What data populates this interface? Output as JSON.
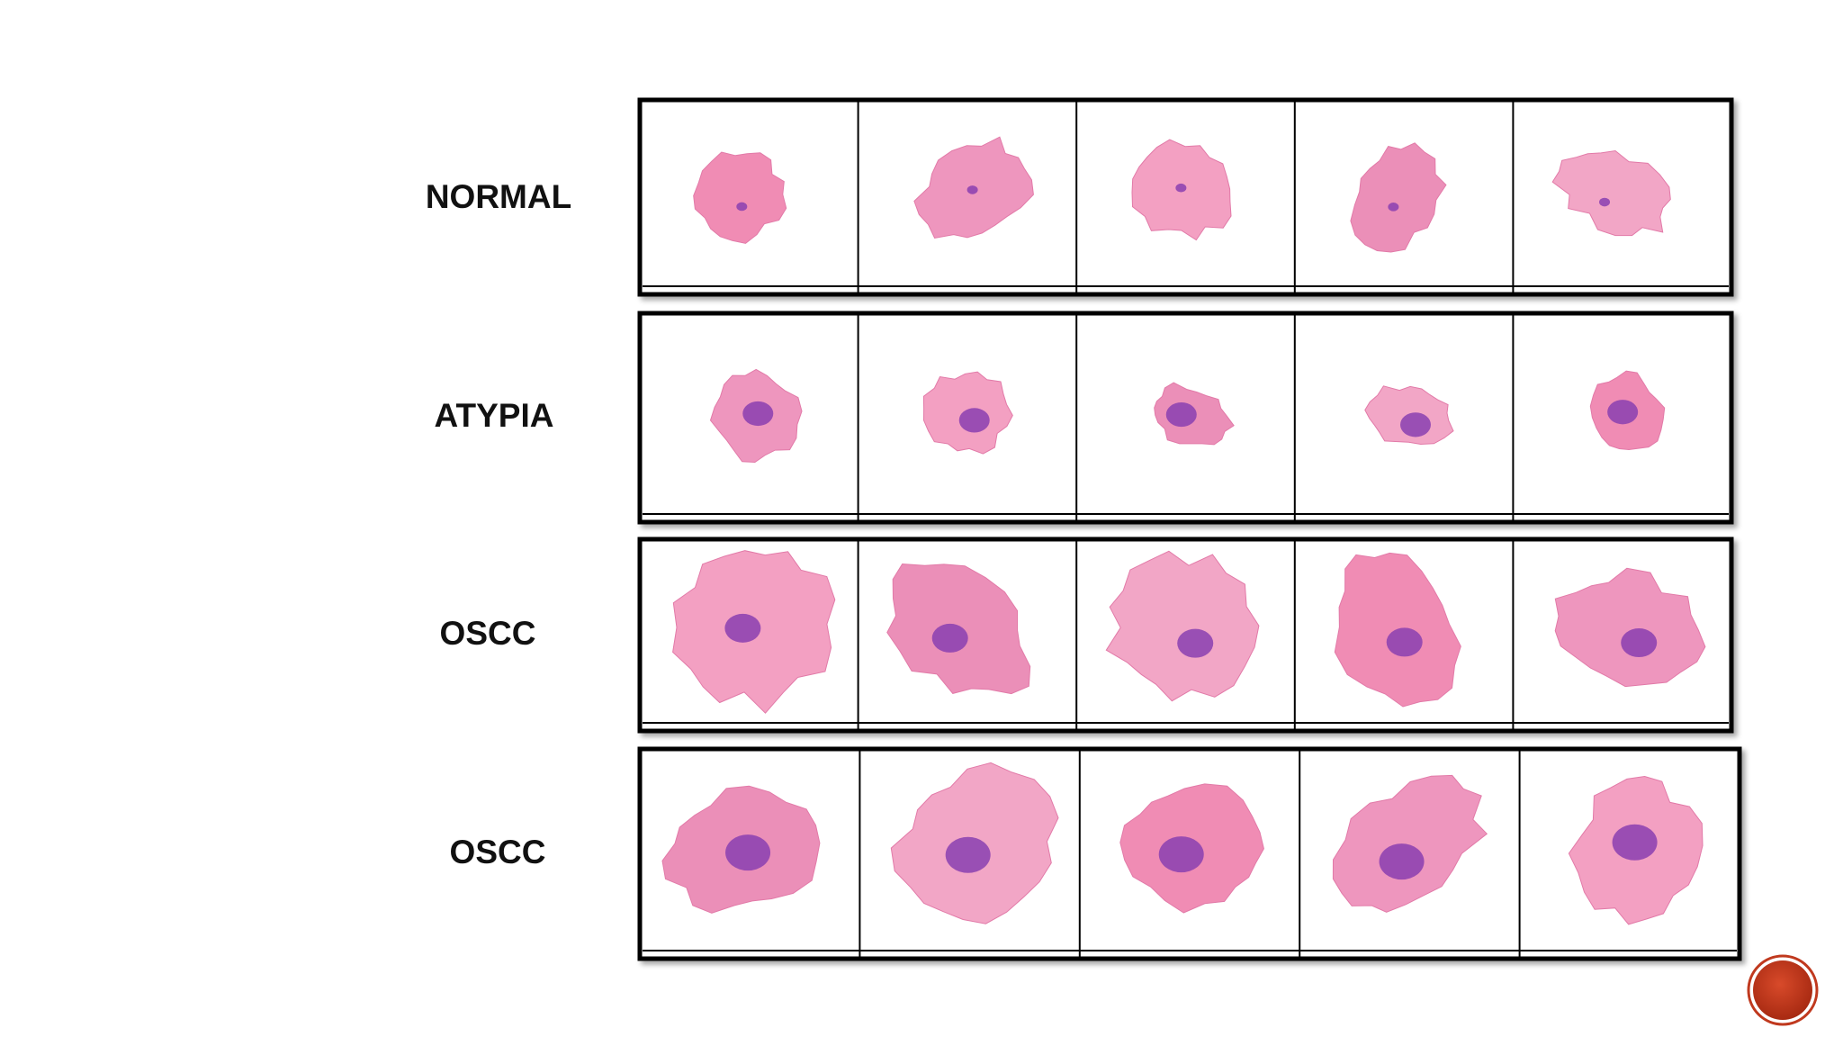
{
  "rows": [
    {
      "label": "NORMAL"
    },
    {
      "label": "ATYPIA"
    },
    {
      "label": "OSCC"
    },
    {
      "label": "OSCC"
    }
  ]
}
